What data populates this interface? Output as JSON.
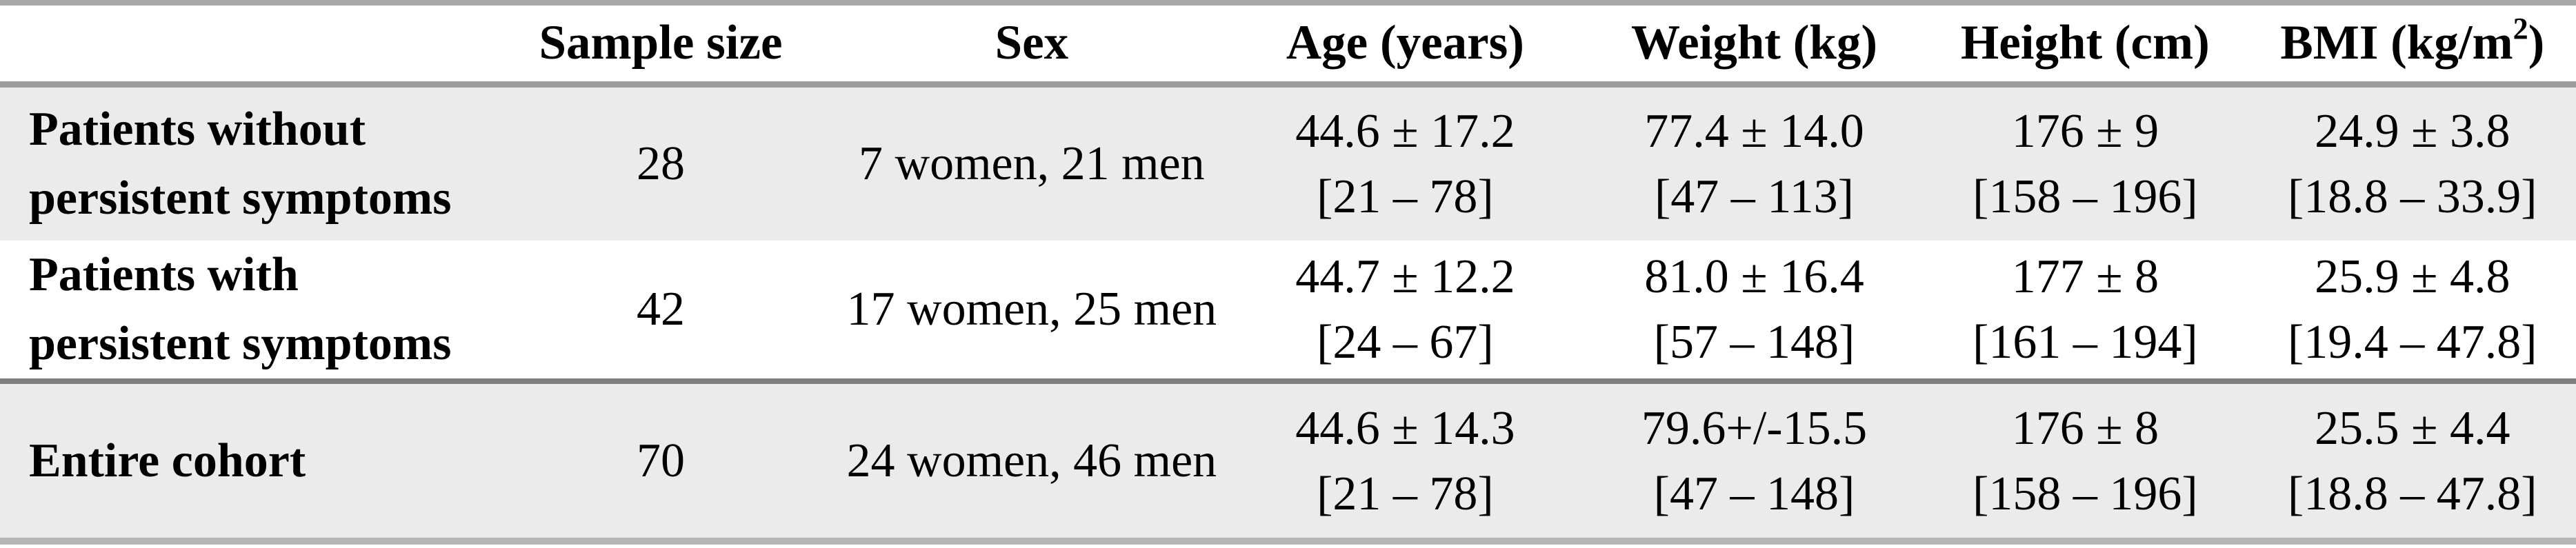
{
  "colors": {
    "row_shading": "#ebebeb",
    "rule_top": "#a9a9a9",
    "rule_header": "#9c9c9c",
    "rule_mid": "#7f7f7f",
    "rule_bottom": "#b5b5b5",
    "text": "#000000",
    "background": "#ffffff"
  },
  "table": {
    "columns": [
      {
        "label": ""
      },
      {
        "label": "Sample size"
      },
      {
        "label": "Sex"
      },
      {
        "label": "Age (years)"
      },
      {
        "label": "Weight (kg)"
      },
      {
        "label": "Height (cm)"
      },
      {
        "label_main": "BMI (kg/m",
        "label_sup": "2",
        "label_close": ")"
      }
    ],
    "rows": [
      {
        "label": "Patients without\npersistent symptoms",
        "sample_size": "28",
        "sex": "7 women, 21 men",
        "age_mean": "44.6 ± 17.2",
        "age_range": "[21 – 78]",
        "weight_mean": "77.4 ± 14.0",
        "weight_range": "[47 – 113]",
        "height_mean": "176 ± 9",
        "height_range": "[158 – 196]",
        "bmi_mean": "24.9 ± 3.8",
        "bmi_range": "[18.8 – 33.9]"
      },
      {
        "label": "Patients with\npersistent symptoms",
        "sample_size": "42",
        "sex": "17 women, 25 men",
        "age_mean": "44.7 ± 12.2",
        "age_range": "[24 – 67]",
        "weight_mean": "81.0 ± 16.4",
        "weight_range": "[57 – 148]",
        "height_mean": "177 ± 8",
        "height_range": "[161 – 194]",
        "bmi_mean": "25.9 ± 4.8",
        "bmi_range": "[19.4 – 47.8]"
      },
      {
        "label": "Entire cohort",
        "sample_size": "70",
        "sex": "24 women, 46 men",
        "age_mean": "44.6 ± 14.3",
        "age_range": "[21 – 78]",
        "weight_mean": "79.6+/-15.5",
        "weight_range": "[47 – 148]",
        "height_mean": "176 ± 8",
        "height_range": "[158 – 196]",
        "bmi_mean": "25.5 ± 4.4",
        "bmi_range": "[18.8 – 47.8]"
      }
    ]
  },
  "chart_data": {
    "type": "table",
    "columns": [
      "",
      "Sample size",
      "Sex",
      "Age (years)",
      "Weight (kg)",
      "Height (cm)",
      "BMI (kg/m2)"
    ],
    "rows": [
      [
        "Patients without persistent symptoms",
        "28",
        "7 women, 21 men",
        "44.6 ± 17.2 [21 – 78]",
        "77.4 ± 14.0 [47 – 113]",
        "176 ± 9 [158 – 196]",
        "24.9 ± 3.8 [18.8 – 33.9]"
      ],
      [
        "Patients with persistent symptoms",
        "42",
        "17 women, 25 men",
        "44.7 ± 12.2 [24 – 67]",
        "81.0 ± 16.4 [57 – 148]",
        "177 ± 8 [161 – 194]",
        "25.9 ± 4.8 [19.4 – 47.8]"
      ],
      [
        "Entire cohort",
        "70",
        "24 women, 46 men",
        "44.6 ± 14.3 [21 – 78]",
        "79.6+/-15.5 [47 – 148]",
        "176 ± 8 [158 – 196]",
        "25.5 ± 4.4 [18.8 – 47.8]"
      ]
    ]
  }
}
